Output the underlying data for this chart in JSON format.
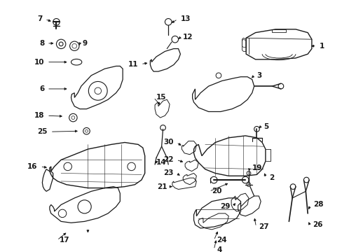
{
  "bg_color": "#ffffff",
  "line_color": "#1a1a1a",
  "fig_width": 4.89,
  "fig_height": 3.6,
  "dpi": 100,
  "fontsize": 7.5
}
